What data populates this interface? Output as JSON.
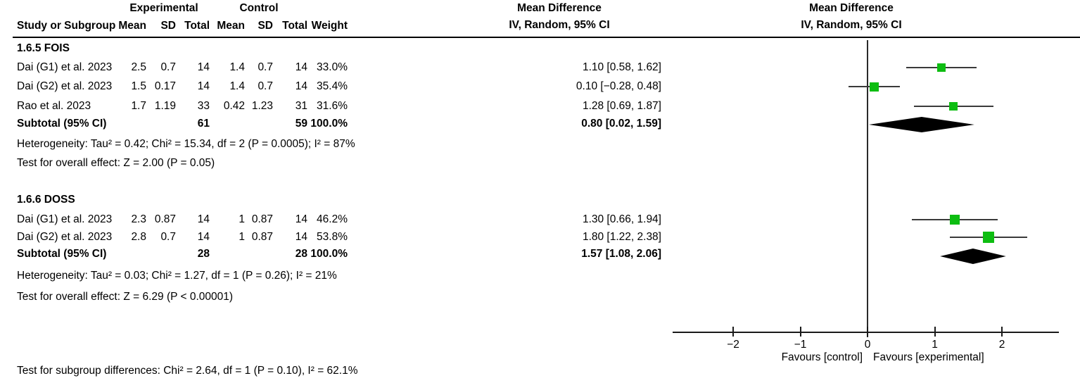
{
  "header": {
    "study": "Study or Subgroup",
    "group1": "Experimental",
    "group2": "Control",
    "mean": "Mean",
    "sd": "SD",
    "total": "Total",
    "weight": "Weight",
    "md_title": "Mean Difference",
    "md_sub": "IV, Random, 95% CI"
  },
  "groups": [
    {
      "title": "1.6.5 FOIS",
      "rows": [
        {
          "study": "Dai (G1) et al. 2023",
          "mean_e": "2.5",
          "sd_e": "0.7",
          "total_e": "14",
          "mean_c": "1.4",
          "sd_c": "0.7",
          "total_c": "14",
          "weight": "33.0%",
          "ci": "1.10 [0.58, 1.62]"
        },
        {
          "study": "Dai (G2) et al. 2023",
          "mean_e": "1.5",
          "sd_e": "0.17",
          "total_e": "14",
          "mean_c": "1.4",
          "sd_c": "0.7",
          "total_c": "14",
          "weight": "35.4%",
          "ci": "0.10 [−0.28, 0.48]"
        },
        {
          "study": "Rao et al. 2023",
          "mean_e": "1.7",
          "sd_e": "1.19",
          "total_e": "33",
          "mean_c": "0.42",
          "sd_c": "1.23",
          "total_c": "31",
          "weight": "31.6%",
          "ci": "1.28 [0.69, 1.87]"
        }
      ],
      "subtotal": {
        "label": "Subtotal (95% CI)",
        "total_e": "61",
        "total_c": "59",
        "weight": "100.0%",
        "ci": "0.80 [0.02, 1.59]"
      },
      "heterogeneity": "Heterogeneity: Tau² = 0.42; Chi² = 15.34, df = 2 (P = 0.0005); I² = 87%",
      "overall": "Test for overall effect: Z = 2.00 (P = 0.05)"
    },
    {
      "title": "1.6.6 DOSS",
      "rows": [
        {
          "study": "Dai (G1) et al. 2023",
          "mean_e": "2.3",
          "sd_e": "0.87",
          "total_e": "14",
          "mean_c": "1",
          "sd_c": "0.87",
          "total_c": "14",
          "weight": "46.2%",
          "ci": "1.30 [0.66, 1.94]"
        },
        {
          "study": "Dai (G2) et al. 2023",
          "mean_e": "2.8",
          "sd_e": "0.7",
          "total_e": "14",
          "mean_c": "1",
          "sd_c": "0.87",
          "total_c": "14",
          "weight": "53.8%",
          "ci": "1.80 [1.22, 2.38]"
        }
      ],
      "subtotal": {
        "label": "Subtotal (95% CI)",
        "total_e": "28",
        "total_c": "28",
        "weight": "100.0%",
        "ci": "1.57 [1.08, 2.06]"
      },
      "heterogeneity": "Heterogeneity: Tau² = 0.03; Chi² = 1.27, df = 1 (P = 0.26); I² = 21%",
      "overall": "Test for overall effect: Z = 6.29 (P < 0.00001)"
    }
  ],
  "footer": {
    "subgroup_diff": "Test for subgroup differences: Chi² = 2.64, df = 1 (P = 0.10), I² = 62.1%"
  },
  "chart_data": {
    "type": "forest",
    "effect_measure": "Mean Difference",
    "model": "IV, Random, 95% CI",
    "axis": {
      "ticks": [
        -2,
        -1,
        0,
        1,
        2
      ],
      "min": -2.9,
      "max": 2.85,
      "zero_line": 0,
      "label_left": "Favours [control]",
      "label_right": "Favours [experimental]"
    },
    "marker_color": "#0dbd11",
    "diamond_color": "#000000",
    "subgroups": [
      {
        "name": "1.6.5 FOIS",
        "studies": [
          {
            "label": "Dai (G1) et al. 2023",
            "md": 1.1,
            "ci_low": 0.58,
            "ci_high": 1.62,
            "weight_pct": 33.0
          },
          {
            "label": "Dai (G2) et al. 2023",
            "md": 0.1,
            "ci_low": -0.28,
            "ci_high": 0.48,
            "weight_pct": 35.4
          },
          {
            "label": "Rao et al. 2023",
            "md": 1.28,
            "ci_low": 0.69,
            "ci_high": 1.87,
            "weight_pct": 31.6
          }
        ],
        "subtotal": {
          "md": 0.8,
          "ci_low": 0.02,
          "ci_high": 1.59
        },
        "totals": {
          "experimental": 61,
          "control": 59,
          "weight_pct": 100.0
        },
        "heterogeneity": {
          "tau2": 0.42,
          "chi2": 15.34,
          "df": 2,
          "p": "0.0005",
          "i2_pct": 87
        },
        "overall_effect": {
          "z": 2.0,
          "p": "0.05"
        }
      },
      {
        "name": "1.6.6 DOSS",
        "studies": [
          {
            "label": "Dai (G1) et al. 2023",
            "md": 1.3,
            "ci_low": 0.66,
            "ci_high": 1.94,
            "weight_pct": 46.2
          },
          {
            "label": "Dai (G2) et al. 2023",
            "md": 1.8,
            "ci_low": 1.22,
            "ci_high": 2.38,
            "weight_pct": 53.8
          }
        ],
        "subtotal": {
          "md": 1.57,
          "ci_low": 1.08,
          "ci_high": 2.06
        },
        "totals": {
          "experimental": 28,
          "control": 28,
          "weight_pct": 100.0
        },
        "heterogeneity": {
          "tau2": 0.03,
          "chi2": 1.27,
          "df": 1,
          "p": "0.26",
          "i2_pct": 21
        },
        "overall_effect": {
          "z": 6.29,
          "p": "< 0.00001"
        }
      }
    ],
    "subgroup_difference": {
      "chi2": 2.64,
      "df": 1,
      "p": "0.10",
      "i2_pct": 62.1
    }
  }
}
